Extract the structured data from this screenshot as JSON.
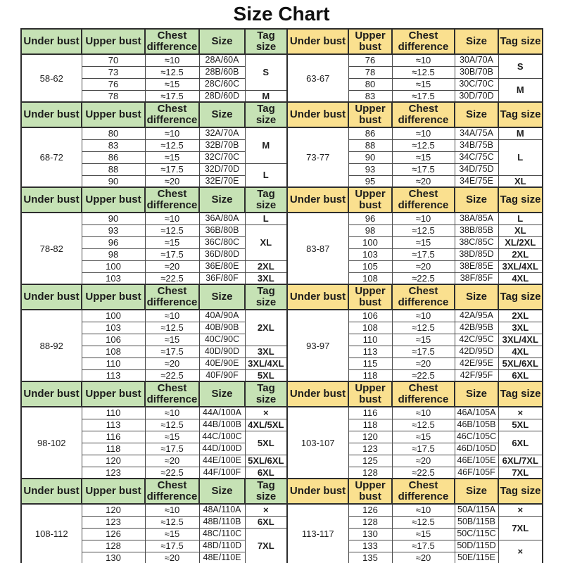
{
  "title": "Size Chart",
  "colors": {
    "header_green": "#c6e2b5",
    "header_yellow": "#fae08f",
    "border_dark": "#2e2e2e",
    "border_light": "#4a4a4a",
    "text": "#1c1c1c",
    "background": "#ffffff"
  },
  "chart_data": [
    {
      "type": "table",
      "name": "left-size-table",
      "columns": [
        "Under bust",
        "Upper bust",
        "Chest difference",
        "Size",
        "Tag size"
      ],
      "header_theme": "green",
      "sections": [
        {
          "under_bust": "58-62",
          "rows": [
            [
              "70",
              "≈10",
              "28A/60A"
            ],
            [
              "73",
              "≈12.5",
              "28B/60B"
            ],
            [
              "76",
              "≈15",
              "28C/60C"
            ],
            [
              "78",
              "≈17.5",
              "28D/60D"
            ]
          ],
          "tags": [
            {
              "label": "S",
              "span": 3
            },
            {
              "label": "M",
              "span": 1
            }
          ]
        },
        {
          "under_bust": "68-72",
          "rows": [
            [
              "80",
              "≈10",
              "32A/70A"
            ],
            [
              "83",
              "≈12.5",
              "32B/70B"
            ],
            [
              "86",
              "≈15",
              "32C/70C"
            ],
            [
              "88",
              "≈17.5",
              "32D/70D"
            ],
            [
              "90",
              "≈20",
              "32E/70E"
            ]
          ],
          "tags": [
            {
              "label": "M",
              "span": 3
            },
            {
              "label": "L",
              "span": 2
            }
          ]
        },
        {
          "under_bust": "78-82",
          "rows": [
            [
              "90",
              "≈10",
              "36A/80A"
            ],
            [
              "93",
              "≈12.5",
              "36B/80B"
            ],
            [
              "96",
              "≈15",
              "36C/80C"
            ],
            [
              "98",
              "≈17.5",
              "36D/80D"
            ],
            [
              "100",
              "≈20",
              "36E/80E"
            ],
            [
              "103",
              "≈22.5",
              "36F/80F"
            ]
          ],
          "tags": [
            {
              "label": "L",
              "span": 1
            },
            {
              "label": "XL",
              "span": 3
            },
            {
              "label": "2XL",
              "span": 1
            },
            {
              "label": "3XL",
              "span": 1
            }
          ]
        },
        {
          "under_bust": "88-92",
          "rows": [
            [
              "100",
              "≈10",
              "40A/90A"
            ],
            [
              "103",
              "≈12.5",
              "40B/90B"
            ],
            [
              "106",
              "≈15",
              "40C/90C"
            ],
            [
              "108",
              "≈17.5",
              "40D/90D"
            ],
            [
              "110",
              "≈20",
              "40E/90E"
            ],
            [
              "113",
              "≈22.5",
              "40F/90F"
            ]
          ],
          "tags": [
            {
              "label": "2XL",
              "span": 3
            },
            {
              "label": "3XL",
              "span": 1
            },
            {
              "label": "3XL/4XL",
              "span": 1
            },
            {
              "label": "5XL",
              "span": 1
            }
          ]
        },
        {
          "under_bust": "98-102",
          "rows": [
            [
              "110",
              "≈10",
              "44A/100A"
            ],
            [
              "113",
              "≈12.5",
              "44B/100B"
            ],
            [
              "116",
              "≈15",
              "44C/100C"
            ],
            [
              "118",
              "≈17.5",
              "44D/100D"
            ],
            [
              "120",
              "≈20",
              "44E/100E"
            ],
            [
              "123",
              "≈22.5",
              "44F/100F"
            ]
          ],
          "tags": [
            {
              "label": "×",
              "span": 1
            },
            {
              "label": "4XL/5XL",
              "span": 1
            },
            {
              "label": "5XL",
              "span": 2
            },
            {
              "label": "5XL/6XL",
              "span": 1
            },
            {
              "label": "6XL",
              "span": 1
            }
          ]
        },
        {
          "under_bust": "108-112",
          "rows": [
            [
              "120",
              "≈10",
              "48A/110A"
            ],
            [
              "123",
              "≈12.5",
              "48B/110B"
            ],
            [
              "126",
              "≈15",
              "48C/110C"
            ],
            [
              "128",
              "≈17.5",
              "48D/110D"
            ],
            [
              "130",
              "≈20",
              "48E/110E"
            ]
          ],
          "tags": [
            {
              "label": "×",
              "span": 1
            },
            {
              "label": "6XL",
              "span": 1
            },
            {
              "label": "7XL",
              "span": 3
            }
          ]
        }
      ]
    },
    {
      "type": "table",
      "name": "right-size-table",
      "columns": [
        "Under bust",
        "Upper bust",
        "Chest difference",
        "Size",
        "Tag size"
      ],
      "header_theme": "yellow",
      "sections": [
        {
          "under_bust": "63-67",
          "rows": [
            [
              "76",
              "≈10",
              "30A/70A"
            ],
            [
              "78",
              "≈12.5",
              "30B/70B"
            ],
            [
              "80",
              "≈15",
              "30C/70C"
            ],
            [
              "83",
              "≈17.5",
              "30D/70D"
            ]
          ],
          "tags": [
            {
              "label": "S",
              "span": 2
            },
            {
              "label": "M",
              "span": 2
            }
          ]
        },
        {
          "under_bust": "73-77",
          "rows": [
            [
              "86",
              "≈10",
              "34A/75A"
            ],
            [
              "88",
              "≈12.5",
              "34B/75B"
            ],
            [
              "90",
              "≈15",
              "34C/75C"
            ],
            [
              "93",
              "≈17.5",
              "34D/75D"
            ],
            [
              "95",
              "≈20",
              "34E/75E"
            ]
          ],
          "tags": [
            {
              "label": "M",
              "span": 1
            },
            {
              "label": "L",
              "span": 3
            },
            {
              "label": "XL",
              "span": 1
            }
          ]
        },
        {
          "under_bust": "83-87",
          "rows": [
            [
              "96",
              "≈10",
              "38A/85A"
            ],
            [
              "98",
              "≈12.5",
              "38B/85B"
            ],
            [
              "100",
              "≈15",
              "38C/85C"
            ],
            [
              "103",
              "≈17.5",
              "38D/85D"
            ],
            [
              "105",
              "≈20",
              "38E/85E"
            ],
            [
              "108",
              "≈22.5",
              "38F/85F"
            ]
          ],
          "tags": [
            {
              "label": "L",
              "span": 1
            },
            {
              "label": "XL",
              "span": 1
            },
            {
              "label": "XL/2XL",
              "span": 1
            },
            {
              "label": "2XL",
              "span": 1
            },
            {
              "label": "3XL/4XL",
              "span": 1
            },
            {
              "label": "4XL",
              "span": 1
            }
          ]
        },
        {
          "under_bust": "93-97",
          "rows": [
            [
              "106",
              "≈10",
              "42A/95A"
            ],
            [
              "108",
              "≈12.5",
              "42B/95B"
            ],
            [
              "110",
              "≈15",
              "42C/95C"
            ],
            [
              "113",
              "≈17.5",
              "42D/95D"
            ],
            [
              "115",
              "≈20",
              "42E/95E"
            ],
            [
              "118",
              "≈22.5",
              "42F/95F"
            ]
          ],
          "tags": [
            {
              "label": "2XL",
              "span": 1
            },
            {
              "label": "3XL",
              "span": 1
            },
            {
              "label": "3XL/4XL",
              "span": 1
            },
            {
              "label": "4XL",
              "span": 1
            },
            {
              "label": "5XL/6XL",
              "span": 1
            },
            {
              "label": "6XL",
              "span": 1
            }
          ]
        },
        {
          "under_bust": "103-107",
          "rows": [
            [
              "116",
              "≈10",
              "46A/105A"
            ],
            [
              "118",
              "≈12.5",
              "46B/105B"
            ],
            [
              "120",
              "≈15",
              "46C/105C"
            ],
            [
              "123",
              "≈17.5",
              "46D/105D"
            ],
            [
              "125",
              "≈20",
              "46E/105E"
            ],
            [
              "128",
              "≈22.5",
              "46F/105F"
            ]
          ],
          "tags": [
            {
              "label": "×",
              "span": 1
            },
            {
              "label": "5XL",
              "span": 1
            },
            {
              "label": "6XL",
              "span": 2
            },
            {
              "label": "6XL/7XL",
              "span": 1
            },
            {
              "label": "7XL",
              "span": 1
            }
          ]
        },
        {
          "under_bust": "113-117",
          "rows": [
            [
              "126",
              "≈10",
              "50A/115A"
            ],
            [
              "128",
              "≈12.5",
              "50B/115B"
            ],
            [
              "130",
              "≈15",
              "50C/115C"
            ],
            [
              "133",
              "≈17.5",
              "50D/115D"
            ],
            [
              "135",
              "≈20",
              "50E/115E"
            ]
          ],
          "tags": [
            {
              "label": "×",
              "span": 1
            },
            {
              "label": "7XL",
              "span": 2
            },
            {
              "label": "×",
              "span": 2
            }
          ]
        }
      ]
    }
  ]
}
